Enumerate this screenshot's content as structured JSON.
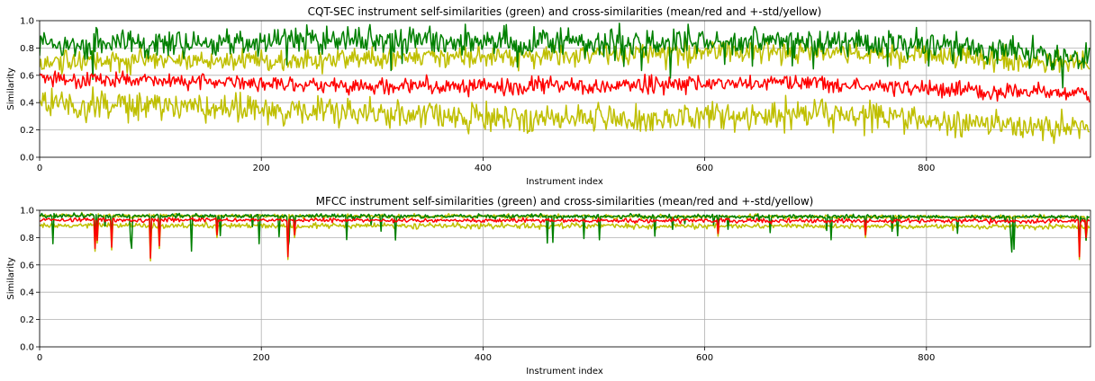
{
  "chart_data": [
    {
      "type": "line",
      "title": "CQT-SEC instrument self-similarities (green) and cross-similarities (mean/red and +-std/yellow)",
      "xlabel": "Instrument index",
      "ylabel": "Similarity",
      "xlim": [
        0,
        948
      ],
      "ylim": [
        0,
        1.0
      ],
      "xticks": [
        0,
        200,
        400,
        600,
        800
      ],
      "yticks": [
        0.0,
        0.2,
        0.4,
        0.6,
        0.8,
        1.0
      ],
      "grid": true,
      "colors": {
        "self": "#008000",
        "mean": "#ff0000",
        "std": "#bfbf00"
      },
      "n_points": 948,
      "profile": {
        "self_mean": [
          [
            0,
            0.82
          ],
          [
            300,
            0.86
          ],
          [
            500,
            0.85
          ],
          [
            700,
            0.85
          ],
          [
            850,
            0.8
          ],
          [
            948,
            0.72
          ]
        ],
        "self_noise": 0.1,
        "mean": [
          [
            0,
            0.58
          ],
          [
            300,
            0.52
          ],
          [
            500,
            0.52
          ],
          [
            700,
            0.55
          ],
          [
            850,
            0.48
          ],
          [
            948,
            0.46
          ]
        ],
        "mean_noise": 0.06,
        "std_upper": [
          [
            0,
            0.7
          ],
          [
            300,
            0.72
          ],
          [
            500,
            0.75
          ],
          [
            700,
            0.78
          ],
          [
            850,
            0.72
          ],
          [
            948,
            0.7
          ]
        ],
        "std_lower": [
          [
            0,
            0.4
          ],
          [
            300,
            0.32
          ],
          [
            500,
            0.28
          ],
          [
            700,
            0.32
          ],
          [
            850,
            0.24
          ],
          [
            948,
            0.22
          ]
        ],
        "std_noise": 0.08
      },
      "series": [
        {
          "values": []
        },
        {
          "values": []
        },
        {
          "values": []
        },
        {
          "values": []
        }
      ]
    },
    {
      "type": "line",
      "title": "MFCC instrument self-similarities (green) and cross-similarities (mean/red and +-std/yellow)",
      "xlabel": "Instrument index",
      "ylabel": "Similarity",
      "xlim": [
        0,
        948
      ],
      "ylim": [
        0,
        1.0
      ],
      "xticks": [
        0,
        200,
        400,
        600,
        800
      ],
      "yticks": [
        0.0,
        0.2,
        0.4,
        0.6,
        0.8,
        1.0
      ],
      "grid": true,
      "colors": {
        "self": "#008000",
        "mean": "#ff0000",
        "std": "#bfbf00"
      },
      "n_points": 948,
      "profile": {
        "self_mean": [
          [
            0,
            0.96
          ],
          [
            948,
            0.95
          ]
        ],
        "self_noise": 0.015,
        "mean": [
          [
            0,
            0.93
          ],
          [
            948,
            0.92
          ]
        ],
        "mean_noise": 0.015,
        "std_upper": [
          [
            0,
            0.96
          ],
          [
            948,
            0.95
          ]
        ],
        "std_lower": [
          [
            0,
            0.89
          ],
          [
            948,
            0.88
          ]
        ],
        "std_noise": 0.015,
        "dips": [
          [
            50,
            0.72
          ],
          [
            52,
            0.78
          ],
          [
            65,
            0.73
          ],
          [
            100,
            0.65
          ],
          [
            108,
            0.74
          ],
          [
            160,
            0.82
          ],
          [
            224,
            0.66
          ],
          [
            230,
            0.82
          ],
          [
            612,
            0.83
          ],
          [
            745,
            0.82
          ],
          [
            938,
            0.66
          ],
          [
            944,
            0.8
          ]
        ]
      },
      "series": [
        {
          "values": []
        },
        {
          "values": []
        },
        {
          "values": []
        },
        {
          "values": []
        }
      ]
    }
  ]
}
